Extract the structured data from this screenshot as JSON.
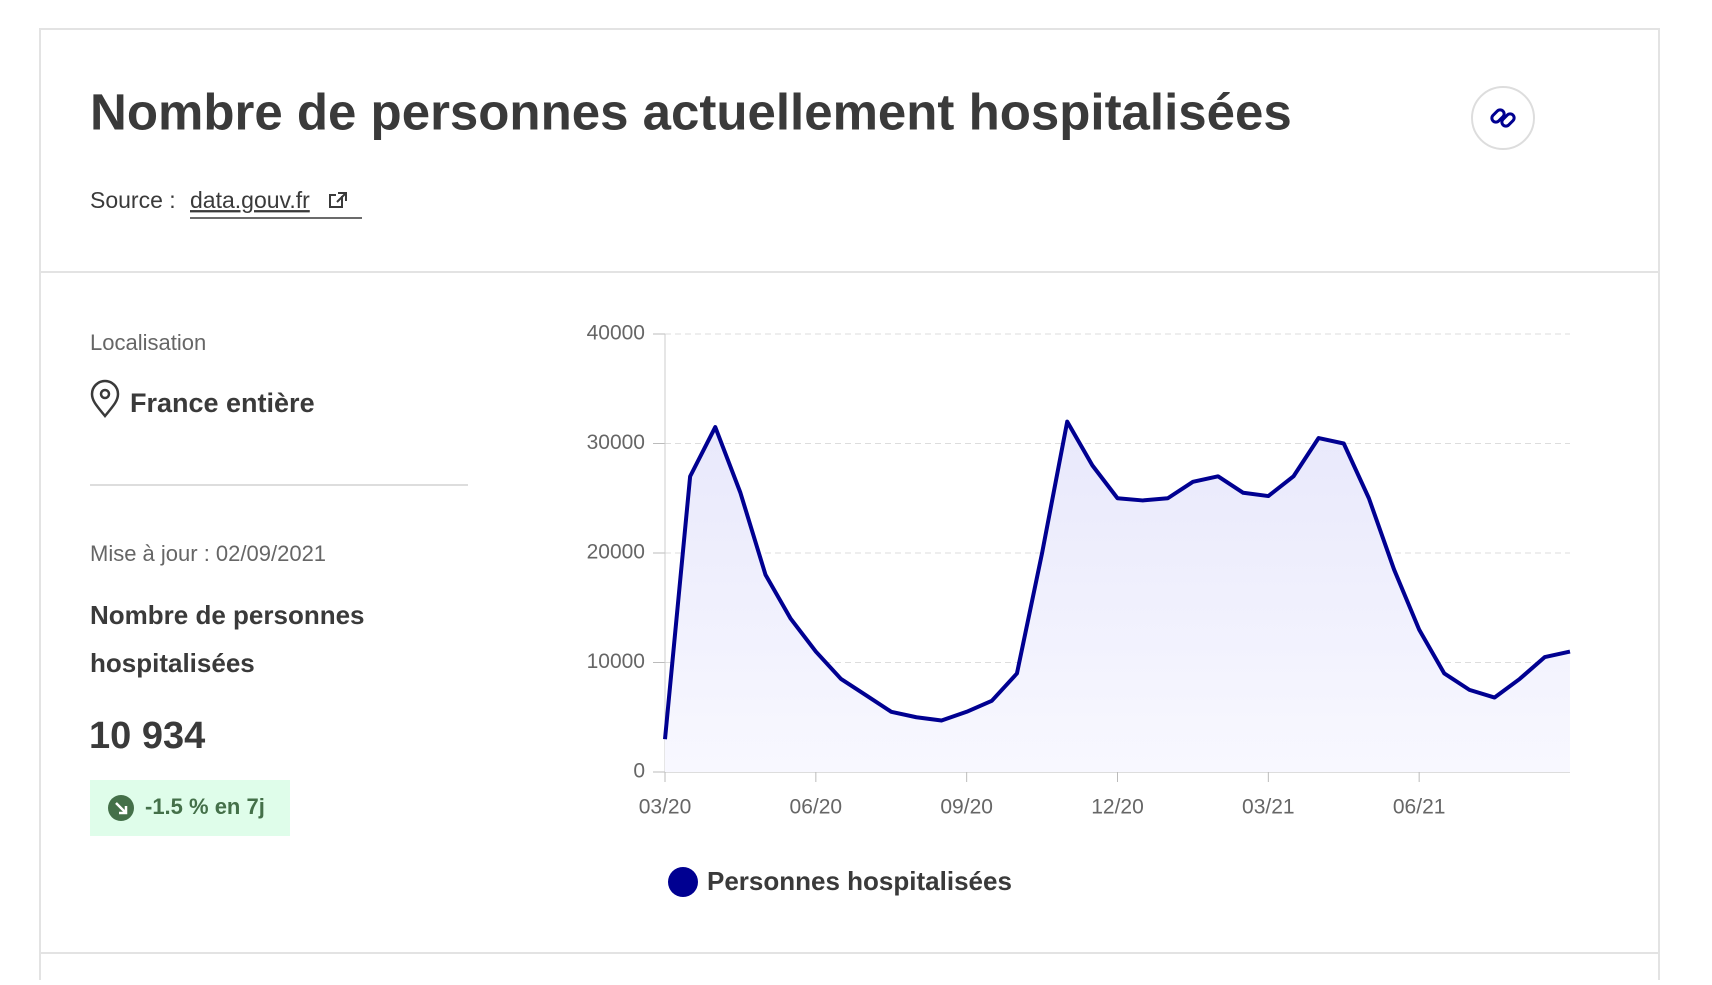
{
  "header": {
    "title": "Nombre de personnes actuellement hospitalisées",
    "source_label": "Source :",
    "source_link": "data.gouv.fr"
  },
  "sidebar": {
    "location_label": "Localisation",
    "location": "France entière",
    "updated": "Mise à jour : 02/09/2021",
    "indicator_line1": "Nombre de personnes",
    "indicator_line2": "hospitalisées",
    "value": "10 934",
    "trend": "-1.5 % en 7j"
  },
  "chart_data": {
    "type": "area",
    "categories": [
      "03/20",
      null,
      null,
      null,
      null,
      null,
      "06/20",
      null,
      null,
      null,
      null,
      null,
      "09/20",
      null,
      null,
      null,
      null,
      null,
      "12/20",
      null,
      null,
      null,
      null,
      null,
      "03/21",
      null,
      null,
      null,
      null,
      null,
      "06/21",
      null,
      null,
      null,
      null,
      null,
      null
    ],
    "series": [
      {
        "name": "Personnes hospitalisées",
        "color": "#000091",
        "values": [
          3000,
          27000,
          31500,
          25500,
          18000,
          14000,
          11000,
          8500,
          7000,
          5500,
          5000,
          4700,
          5500,
          6500,
          9000,
          20000,
          32000,
          28000,
          25000,
          24800,
          25000,
          26500,
          27000,
          25500,
          25200,
          27000,
          30500,
          30000,
          25000,
          18500,
          13000,
          9000,
          7500,
          6800,
          8500,
          10500,
          11000
        ]
      }
    ],
    "ylim": [
      0,
      40000
    ],
    "yticks": [
      0,
      10000,
      20000,
      30000,
      40000
    ],
    "grid": true,
    "legend": "bottom"
  }
}
